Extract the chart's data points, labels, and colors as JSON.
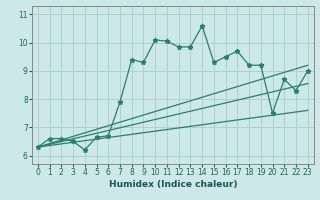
{
  "title": "",
  "xlabel": "Humidex (Indice chaleur)",
  "bg_color": "#cce8e8",
  "grid_color": "#aacccc",
  "line_color": "#2a7f6f",
  "xlim": [
    -0.5,
    23.5
  ],
  "ylim": [
    5.7,
    11.3
  ],
  "xticks": [
    0,
    1,
    2,
    3,
    4,
    5,
    6,
    7,
    8,
    9,
    10,
    11,
    12,
    13,
    14,
    15,
    16,
    17,
    18,
    19,
    20,
    21,
    22,
    23
  ],
  "yticks": [
    6,
    7,
    8,
    9,
    10,
    11
  ],
  "series1_x": [
    0,
    1,
    2,
    3,
    4,
    5,
    6,
    7,
    8,
    9,
    10,
    11,
    12,
    13,
    14,
    15,
    16,
    17,
    18,
    19,
    20,
    21,
    22,
    23
  ],
  "series1_y": [
    6.3,
    6.6,
    6.6,
    6.5,
    6.2,
    6.65,
    6.7,
    7.9,
    9.4,
    9.3,
    10.1,
    10.05,
    9.85,
    9.85,
    10.6,
    9.3,
    9.5,
    9.7,
    9.2,
    9.2,
    7.5,
    8.7,
    8.3,
    9.0
  ],
  "series2_x": [
    0,
    23
  ],
  "series2_y": [
    6.3,
    9.2
  ],
  "series3_x": [
    0,
    23
  ],
  "series3_y": [
    6.3,
    8.55
  ],
  "series4_x": [
    0,
    23
  ],
  "series4_y": [
    6.3,
    7.6
  ]
}
